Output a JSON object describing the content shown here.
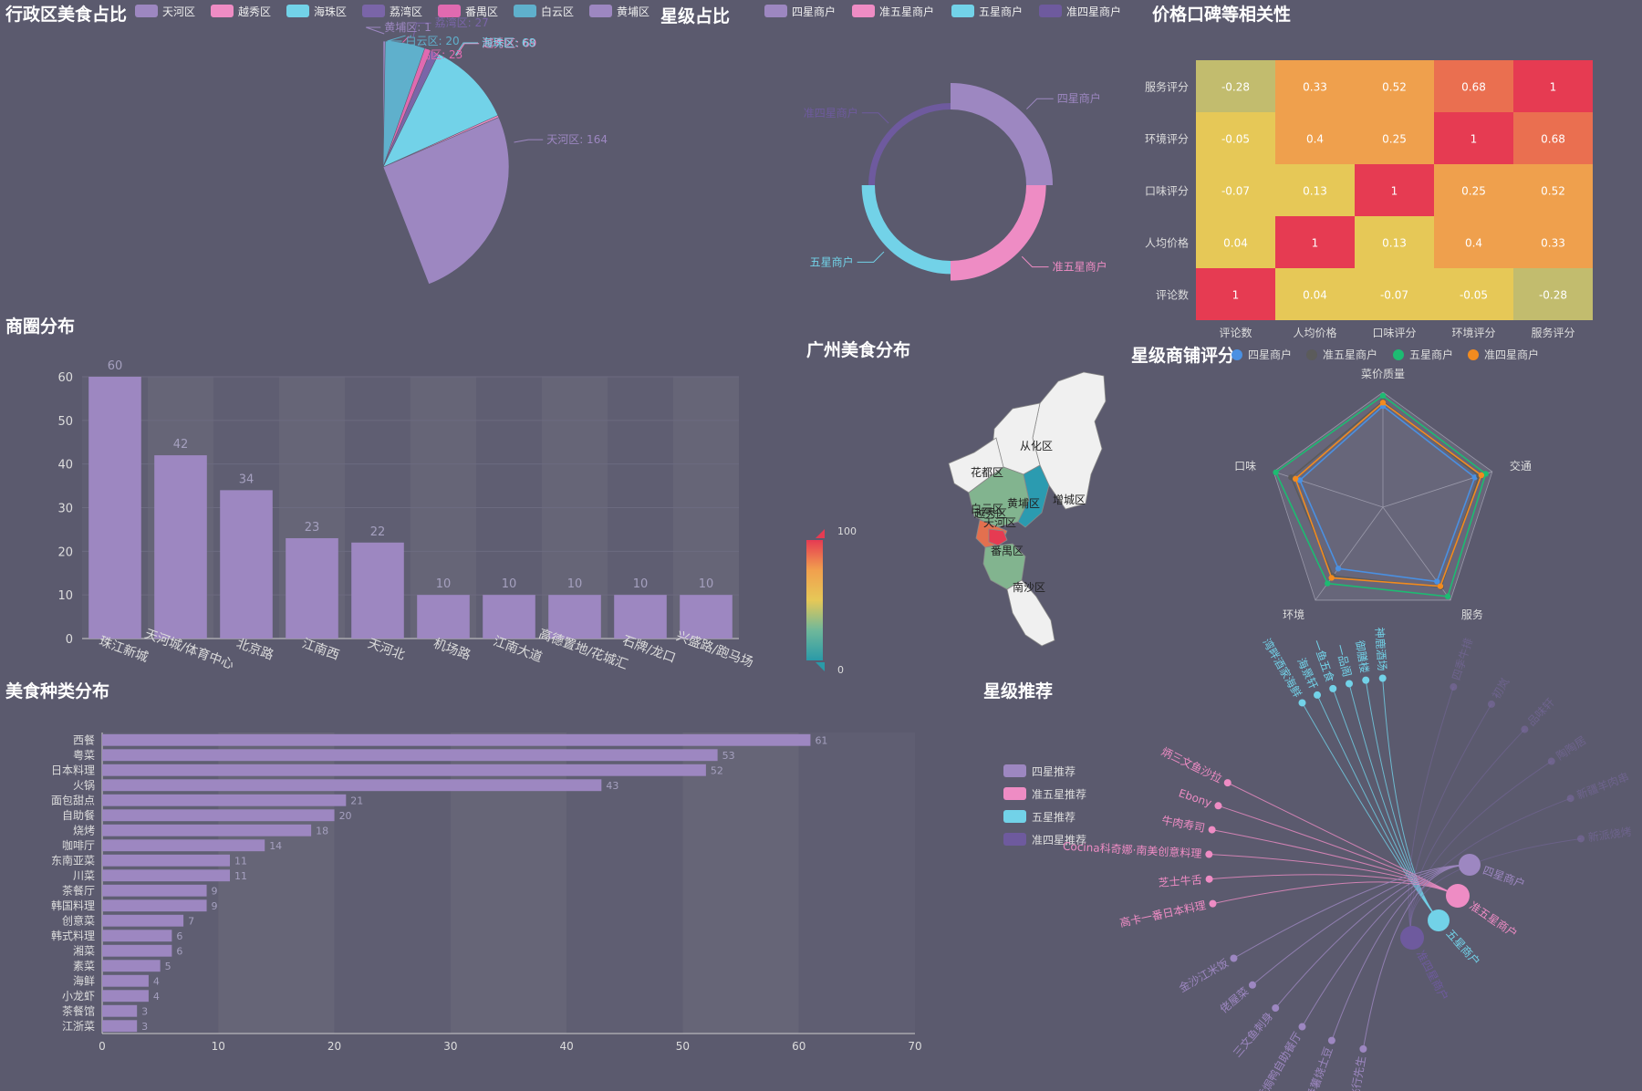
{
  "colors": {
    "background": "#5b5a6e",
    "bar": "#9d87c1",
    "district_palette": [
      "#9d87c1",
      "#ee8cc4",
      "#72d2e8",
      "#7a65a8",
      "#e06ab0",
      "#5fb0cc",
      "#9d87c1"
    ]
  },
  "district_pie": {
    "title": "行政区美食占比",
    "legend": [
      "天河区",
      "越秀区",
      "海珠区",
      "荔湾区",
      "番禺区",
      "白云区",
      "黄埔区"
    ]
  },
  "star_donut": {
    "title": "星级占比",
    "legend": [
      "四星商户",
      "准五星商户",
      "五星商户",
      "准四星商户"
    ],
    "colors": [
      "#9d87c1",
      "#ee8cc4",
      "#72d2e8",
      "#6e5a9e"
    ]
  },
  "heatmap": {
    "title": "价格口碑等相关性",
    "palette": [
      "#c2bc6e",
      "#e6c857",
      "#efa04d",
      "#ea6f50",
      "#e63b52"
    ]
  },
  "business_bar": {
    "title": "商圈分布"
  },
  "map": {
    "title": "广州美食分布",
    "visual_max": "100",
    "visual_min": "0",
    "labels": [
      "从化区",
      "花都区",
      "增城区",
      "白云区",
      "黄埔区",
      "越秀区",
      "天河区",
      "番禺区",
      "南沙区"
    ]
  },
  "radar": {
    "title": "星级商铺评分",
    "legend": [
      "四星商户",
      "准五星商户",
      "五星商户",
      "准四星商户"
    ],
    "colors": [
      "#4a90e2",
      "#5b5b5b",
      "#1dbb72",
      "#f28b1f"
    ]
  },
  "category_bar": {
    "title": "美食种类分布"
  },
  "graph": {
    "title": "星级推荐",
    "legend": [
      "四星推荐",
      "准五星推荐",
      "五星推荐",
      "准四星推荐"
    ],
    "colors": [
      "#9d87c1",
      "#ee8cc4",
      "#72d2e8",
      "#6e5a9e"
    ],
    "hubs": [
      "四星商户",
      "准五星商户",
      "五星商户",
      "准四星商户"
    ],
    "cyan_nodes": [
      "湾畔酒家海鲜",
      "海景轩",
      "一鱼五食",
      "一品阁",
      "御膳楼",
      "神鹿酒场"
    ],
    "pink_nodes": [
      "炳三文鱼沙拉",
      "Ebony",
      "牛肉寿司",
      "Cocina科奇娜·南美创意料理",
      "芝士牛舌",
      "高卡一番日本料理"
    ],
    "purple_nodes": [
      "金沙江米饭",
      "佬屋菜",
      "三文鱼刺身",
      "香焗鸭自助餐厅",
      "番薯烧士豆",
      "Mr Pilot 飞行先生"
    ],
    "faint_nodes": [
      "四季牛排",
      "初岚",
      "品味轩",
      "陶陶居",
      "新疆羊肉串",
      "新派烧烤"
    ]
  },
  "chart_data": [
    {
      "type": "pie",
      "title": "行政区美食占比",
      "labels": [
        "天河区",
        "越秀区",
        "海珠区",
        "荔湾区",
        "番禺区",
        "白云区",
        "黄埔区"
      ],
      "values": [
        164,
        69,
        68,
        27,
        23,
        20,
        1
      ]
    },
    {
      "type": "pie",
      "title": "星级占比",
      "labels": [
        "四星商户",
        "准五星商户",
        "五星商户",
        "准四星商户"
      ],
      "values": [
        25,
        25,
        25,
        25
      ]
    },
    {
      "type": "heatmap",
      "title": "价格口碑等相关性",
      "x": [
        "评论数",
        "人均价格",
        "口味评分",
        "环境评分",
        "服务评分"
      ],
      "y": [
        "评论数",
        "人均价格",
        "口味评分",
        "环境评分",
        "服务评分"
      ],
      "matrix": [
        [
          1,
          0.04,
          -0.07,
          -0.05,
          -0.28
        ],
        [
          0.04,
          1,
          0.13,
          0.4,
          0.33
        ],
        [
          -0.07,
          0.13,
          1,
          0.25,
          0.52
        ],
        [
          -0.05,
          0.4,
          0.25,
          1,
          0.68
        ],
        [
          -0.28,
          0.33,
          0.52,
          0.68,
          1
        ]
      ]
    },
    {
      "type": "bar",
      "title": "商圈分布",
      "categories": [
        "珠江新城",
        "天河城/体育中心",
        "北京路",
        "江南西",
        "天河北",
        "机场路",
        "江南大道",
        "高德置地/花城汇",
        "石牌/龙口",
        "兴盛路/跑马场"
      ],
      "values": [
        60,
        42,
        34,
        23,
        22,
        10,
        10,
        10,
        10,
        10
      ],
      "ylim": [
        0,
        60
      ],
      "yticks": [
        0,
        10,
        20,
        30,
        40,
        50,
        60
      ]
    },
    {
      "type": "radar",
      "title": "星级商铺评分",
      "indicators": [
        "菜价质量",
        "交通",
        "服务",
        "环境",
        "口味"
      ],
      "series": [
        {
          "name": "四星商户",
          "values": [
            0.88,
            0.84,
            0.8,
            0.66,
            0.76
          ]
        },
        {
          "name": "准五星商户",
          "values": [
            0.92,
            0.88,
            0.86,
            0.74,
            0.84
          ]
        },
        {
          "name": "五星商户",
          "values": [
            0.97,
            0.94,
            0.96,
            0.82,
            0.98
          ]
        },
        {
          "name": "准四星商户",
          "values": [
            0.91,
            0.9,
            0.85,
            0.76,
            0.8
          ]
        }
      ]
    },
    {
      "type": "bar",
      "orientation": "horizontal",
      "title": "美食种类分布",
      "categories": [
        "西餐",
        "粤菜",
        "日本料理",
        "火锅",
        "面包甜点",
        "自助餐",
        "烧烤",
        "咖啡厅",
        "东南亚菜",
        "川菜",
        "茶餐厅",
        "韩国料理",
        "创意菜",
        "韩式料理",
        "湘菜",
        "素菜",
        "海鲜",
        "小龙虾",
        "茶餐馆",
        "江浙菜"
      ],
      "values": [
        61,
        53,
        52,
        43,
        21,
        20,
        18,
        14,
        11,
        11,
        9,
        9,
        7,
        6,
        6,
        5,
        4,
        4,
        3,
        3
      ],
      "xlim": [
        0,
        70
      ],
      "xticks": [
        0,
        10,
        20,
        30,
        40,
        50,
        60,
        70
      ]
    }
  ]
}
